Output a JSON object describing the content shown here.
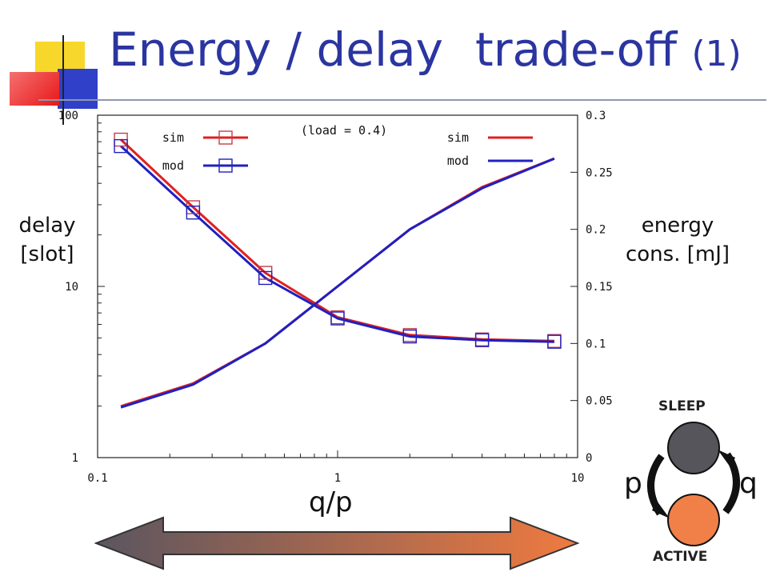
{
  "title": {
    "part1": "Energy / delay",
    "part2": "trade-off",
    "part3": "(1)"
  },
  "colors": {
    "title": "#2b35a0",
    "sim": "#e02020",
    "mod": "#2020c0",
    "marker": "#c04050",
    "sleep_state": "#55555b",
    "active_state": "#f08048",
    "arrow_left": "#5a5560",
    "arrow_right": "#f07a40"
  },
  "chart_data": {
    "type": "line",
    "annotation": "(load = 0.4)",
    "xlabel": "q/p",
    "ylabel_left": "delay\n[slot]",
    "ylabel_right": "energy\ncons. [mJ]",
    "x_scale": "log",
    "xlim": [
      0.1,
      10
    ],
    "x_ticks": [
      "0.1",
      "1",
      "10"
    ],
    "y_left_scale": "log",
    "y_left_lim": [
      1,
      100
    ],
    "y_left_ticks": [
      "1",
      "10",
      "100"
    ],
    "y_right_lim": [
      0,
      0.3
    ],
    "y_right_ticks": [
      "0",
      "0.05",
      "0.1",
      "0.15",
      "0.2",
      "0.25",
      "0.3"
    ],
    "grid": false,
    "legend_left": {
      "items": [
        "sim",
        "mod"
      ],
      "placement": "top-left",
      "note": "delay (square markers)"
    },
    "legend_right": {
      "items": [
        "sim",
        "mod"
      ],
      "placement": "top-right",
      "note": "energy (lines)"
    },
    "x": [
      0.125,
      0.25,
      0.5,
      1,
      2,
      4,
      8
    ],
    "series": [
      {
        "name": "sim",
        "axis": "left",
        "quantity": "delay",
        "markers": true,
        "values": [
          72,
          29,
          12,
          6.6,
          5.2,
          4.9,
          4.8
        ]
      },
      {
        "name": "mod",
        "axis": "left",
        "quantity": "delay",
        "markers": true,
        "values": [
          66,
          27,
          11.2,
          6.5,
          5.1,
          4.85,
          4.75
        ]
      },
      {
        "name": "sim",
        "axis": "right",
        "quantity": "energy",
        "markers": false,
        "values": [
          0.045,
          0.065,
          0.1,
          0.15,
          0.2,
          0.237,
          0.262
        ]
      },
      {
        "name": "mod",
        "axis": "right",
        "quantity": "energy",
        "markers": false,
        "values": [
          0.044,
          0.064,
          0.1,
          0.15,
          0.2,
          0.236,
          0.262
        ]
      }
    ]
  },
  "state_diagram": {
    "sleep_label": "SLEEP",
    "active_label": "ACTIVE",
    "p_label": "p",
    "q_label": "q"
  }
}
